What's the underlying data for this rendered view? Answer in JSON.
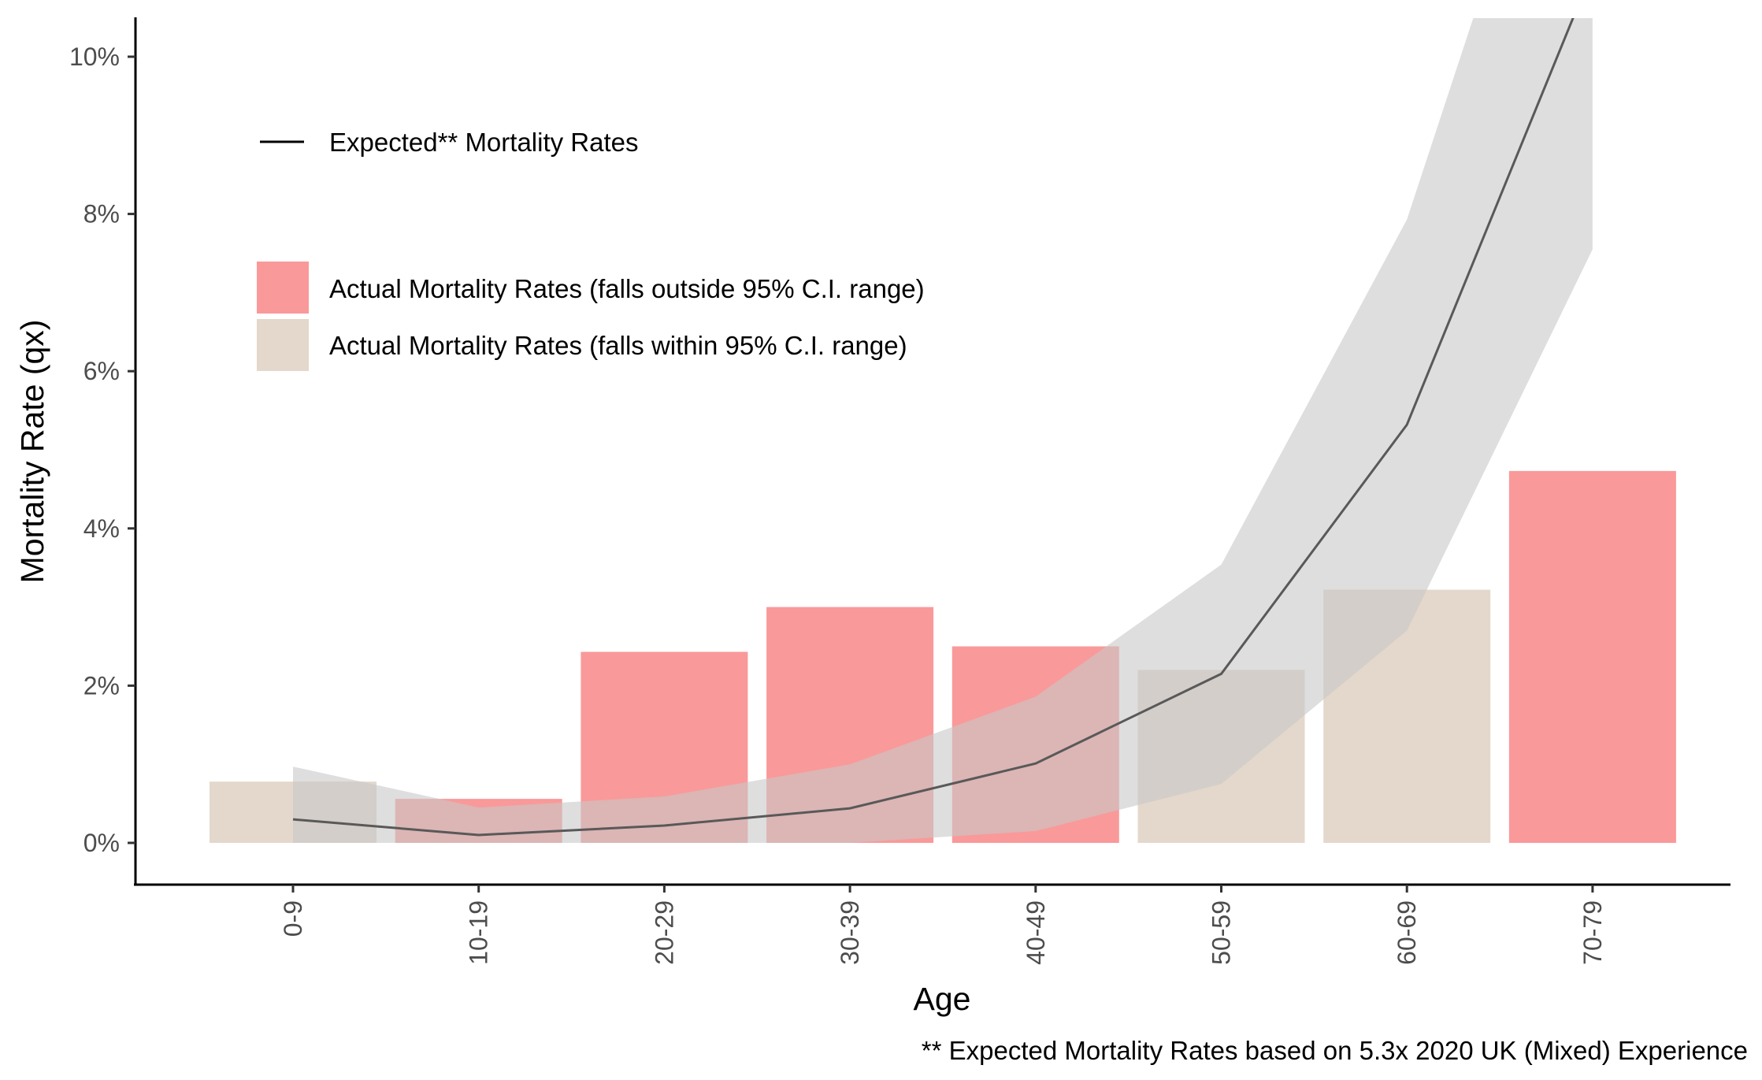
{
  "chart_data": {
    "type": "bar",
    "xlabel": "Age",
    "ylabel": "Mortality Rate (qx)",
    "caption": "** Expected Mortality Rates based on 5.3x 2020 UK (Mixed) Experience",
    "categories": [
      "0-9",
      "10-19",
      "20-29",
      "30-39",
      "40-49",
      "50-59",
      "60-69",
      "70-79"
    ],
    "ylim": [
      -0.005,
      0.105
    ],
    "yticks": [
      0,
      0.02,
      0.04,
      0.06,
      0.08,
      0.1
    ],
    "ytick_labels": [
      "0%",
      "2%",
      "4%",
      "6%",
      "8%",
      "10%"
    ],
    "grid": false,
    "legend_placement": "top-left",
    "series": [
      {
        "kind": "bar",
        "values": [
          0.0078,
          0.0056,
          0.0243,
          0.03,
          0.025,
          0.022,
          0.0322,
          0.0473
        ],
        "within_ci": [
          true,
          false,
          false,
          false,
          false,
          true,
          true,
          false
        ]
      },
      {
        "name": "Expected** Mortality Rates",
        "kind": "line",
        "values": [
          0.003,
          0.001,
          0.0022,
          0.0044,
          0.0101,
          0.0215,
          0.0532,
          0.111
        ]
      },
      {
        "kind": "band",
        "lower": [
          0.0,
          0.0,
          0.0,
          0.0,
          0.0015,
          0.0075,
          0.027,
          0.0755
        ],
        "upper": [
          0.0097,
          0.0045,
          0.0059,
          0.01,
          0.0186,
          0.0354,
          0.0793,
          0.151
        ]
      }
    ],
    "legend": {
      "line_label": "Expected** Mortality Rates",
      "outside_label": "Actual Mortality Rates (falls outside 95% C.I. range)",
      "within_label": "Actual Mortality Rates (falls within 95% C.I. range)"
    },
    "colors": {
      "outside": "#F98080",
      "within": "#D9CBBA",
      "band": "#C8C8C8",
      "line": "#595959",
      "axis": "#000000",
      "tick_text": "#4d4d4d"
    }
  }
}
